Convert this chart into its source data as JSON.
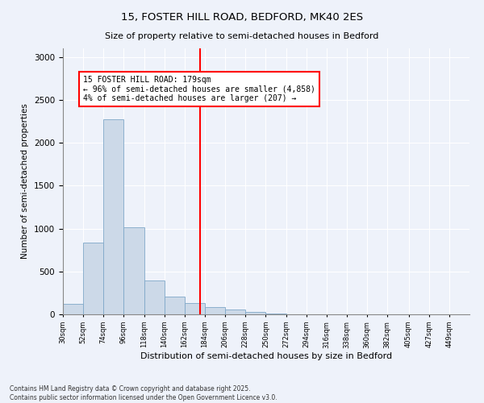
{
  "title1": "15, FOSTER HILL ROAD, BEDFORD, MK40 2ES",
  "title2": "Size of property relative to semi-detached houses in Bedford",
  "xlabel": "Distribution of semi-detached houses by size in Bedford",
  "ylabel": "Number of semi-detached properties",
  "bins": [
    30,
    52,
    74,
    96,
    118,
    140,
    162,
    184,
    206,
    228,
    250,
    272,
    294,
    316,
    338,
    360,
    382,
    405,
    427,
    449,
    471
  ],
  "bar_heights": [
    120,
    840,
    2270,
    1010,
    390,
    210,
    130,
    80,
    55,
    30,
    5,
    2,
    1,
    1,
    0,
    0,
    0,
    0,
    0,
    0
  ],
  "property_size": 179,
  "annotation_title": "15 FOSTER HILL ROAD: 179sqm",
  "annotation_line1": "← 96% of semi-detached houses are smaller (4,858)",
  "annotation_line2": "4% of semi-detached houses are larger (207) →",
  "bar_color": "#ccd9e8",
  "bar_edge_color": "#7fa8c8",
  "vline_color": "red",
  "annotation_box_edge": "red",
  "background_color": "#eef2fa",
  "grid_color": "#ffffff",
  "footer1": "Contains HM Land Registry data © Crown copyright and database right 2025.",
  "footer2": "Contains public sector information licensed under the Open Government Licence v3.0.",
  "ylim": [
    0,
    3100
  ],
  "yticks": [
    0,
    500,
    1000,
    1500,
    2000,
    2500,
    3000
  ]
}
